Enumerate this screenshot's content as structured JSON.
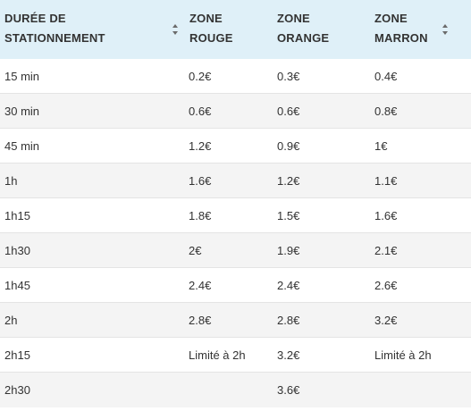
{
  "table": {
    "headers": [
      {
        "line1": "DURÉE DE",
        "line2": "STATIONNEMENT"
      },
      {
        "line1": "ZONE",
        "line2": "ROUGE"
      },
      {
        "line1": "ZONE",
        "line2": "ORANGE"
      },
      {
        "line1": "ZONE",
        "line2": "MARRON"
      }
    ],
    "rows": [
      [
        "15 min",
        "0.2€",
        "0.3€",
        "0.4€"
      ],
      [
        "30 min",
        "0.6€",
        "0.6€",
        "0.8€"
      ],
      [
        "45 min",
        "1.2€",
        "0.9€",
        "1€"
      ],
      [
        "1h",
        "1.6€",
        "1.2€",
        "1.1€"
      ],
      [
        "1h15",
        "1.8€",
        "1.5€",
        "1.6€"
      ],
      [
        "1h30",
        "2€",
        "1.9€",
        "2.1€"
      ],
      [
        "1h45",
        "2.4€",
        "2.4€",
        "2.6€"
      ],
      [
        "2h",
        "2.8€",
        "2.8€",
        "3.2€"
      ],
      [
        "2h15",
        "Limité à 2h",
        "3.2€",
        "Limité à 2h"
      ],
      [
        "2h30",
        "",
        "3.6€",
        ""
      ]
    ],
    "sort_icon": "sort-up-down-icon"
  },
  "colors": {
    "header_bg": "#dff0f8",
    "row_alt_bg": "#f4f4f4",
    "text": "#333333",
    "border": "#e4e4e4"
  }
}
